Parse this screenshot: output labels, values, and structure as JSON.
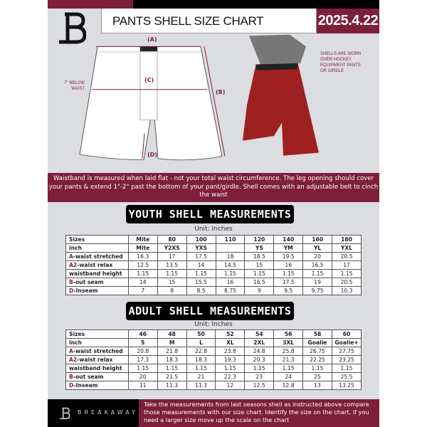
{
  "header": {
    "title": "PANTS SHELL SIZE CHART",
    "date": "2025.4.22"
  },
  "diagram": {
    "label_a": "(A)",
    "label_b": "(B)",
    "label_c": "(C)",
    "label_d": "(D)",
    "below_waist": "7\" BELOW WAIST",
    "shell_note": "SHELLS ARE WORN OVER HOCKEY EQUIPMENT PANTS OR GIRDLE"
  },
  "info_text": "Waistband is measured when laid flat - not your total waist circumference. The leg opening should cover your pants & extend 1\"-2\" past the bottom of your pant/girdle. Shell comes with an adjustable belt to cinch the waist",
  "youth": {
    "title": "YOUTH SHELL MEASUREMENTS",
    "unit": "Unit: Inches",
    "rows": [
      {
        "p": "",
        "l": "Sizes",
        "v": [
          "Mite",
          "80",
          "100",
          "110",
          "120",
          "140",
          "160",
          "180"
        ]
      },
      {
        "p": "",
        "l": "inch",
        "v": [
          "Mite",
          "Y2XS",
          "YXS",
          "",
          "YS",
          "YM",
          "YL",
          "YXL"
        ]
      },
      {
        "p": "A",
        "l": "-waist stretched",
        "v": [
          "16.3",
          "17",
          "17.5",
          "18",
          "18.5",
          "19.5",
          "20",
          "20.5"
        ]
      },
      {
        "p": "A2",
        "l": "-waist relax",
        "v": [
          "12.5",
          "13.5",
          "14",
          "14.5",
          "15",
          "16",
          "16.5",
          "17"
        ]
      },
      {
        "p": "",
        "l": "waistband height",
        "v": [
          "1.15",
          "1.15",
          "1.15",
          "1.15",
          "1.15",
          "1.15",
          "1.15",
          "1.15"
        ]
      },
      {
        "p": "B",
        "l": "-out seam",
        "v": [
          "14",
          "15",
          "15.5",
          "16",
          "16.5",
          "17.5",
          "19",
          "20.5"
        ]
      },
      {
        "p": "D",
        "l": "-Inseam",
        "v": [
          "7",
          "8",
          "8.5",
          "8.75",
          "9",
          "9.5",
          "9.75",
          "10.3"
        ]
      }
    ]
  },
  "adult": {
    "title": "ADULT SHELL MEASUREMENTS",
    "unit": "Unit: Inches",
    "rows": [
      {
        "p": "",
        "l": "Sizes",
        "v": [
          "46",
          "48",
          "50",
          "52",
          "54",
          "56",
          "58",
          "60"
        ]
      },
      {
        "p": "",
        "l": "inch",
        "v": [
          "S",
          "M",
          "L",
          "XL",
          "2XL",
          "3XL",
          "Goalie",
          "Goalie+"
        ]
      },
      {
        "p": "A",
        "l": "-waist stretched",
        "v": [
          "20.8",
          "21.8",
          "22.8",
          "23.8",
          "24.8",
          "25.8",
          "26.75",
          "27.75"
        ]
      },
      {
        "p": "A2",
        "l": "-waist relax",
        "v": [
          "17.3",
          "18.3",
          "18.3",
          "19.3",
          "20.3",
          "21.3",
          "22.25",
          "23.25"
        ]
      },
      {
        "p": "",
        "l": "waistband height",
        "v": [
          "1.15",
          "1.15",
          "1.15",
          "1.15",
          "1.15",
          "1.15",
          "1.15",
          "1.15"
        ]
      },
      {
        "p": "B",
        "l": "-out seam",
        "v": [
          "20",
          "21.5",
          "21",
          "22.3",
          "23",
          "24",
          "25",
          "25.5"
        ]
      },
      {
        "p": "D",
        "l": "-Inseam",
        "v": [
          "11",
          "11.3",
          "11.3",
          "12",
          "12.5",
          "12.8",
          "13",
          "13.25"
        ]
      }
    ]
  },
  "footer": {
    "brand": "BREAKAWAY",
    "text": "Take the measurements from last seasons shell as instructed above compare those measurements  with our size chart. Identify the size on the chart, if you need a larger size move up the scale on the chart"
  },
  "colors": {
    "accent": "#7d1f3b",
    "background": "#dcdde1"
  }
}
